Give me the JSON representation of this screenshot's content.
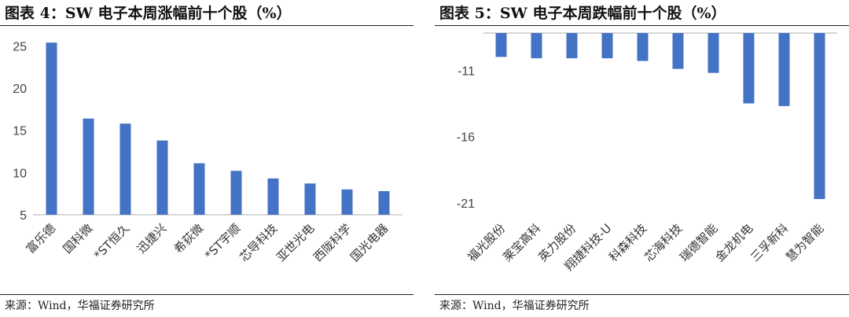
{
  "charts": {
    "left": {
      "title": "图表 4：SW 电子本周涨幅前十个股（%）",
      "source": "来源：Wind，华福证券研究所"
    },
    "right": {
      "title": "图表 5：SW 电子本周跌幅前十个股（%）",
      "source": "来源：Wind，华福证券研究所"
    }
  },
  "colors": {
    "bar": "#4472C4",
    "axis": "#BFBFBF",
    "text": "#333333"
  },
  "chart_data": [
    {
      "type": "bar",
      "title": "图表 4：SW 电子本周涨幅前十个股（%）",
      "categories": [
        "富乐德",
        "国科微",
        "*ST恒久",
        "迅捷兴",
        "希荻微",
        "*ST宇顺",
        "芯导科技",
        "亚世光电",
        "西陇科学",
        "国光电器"
      ],
      "values": [
        25.4,
        16.4,
        15.8,
        13.8,
        11.1,
        10.2,
        9.3,
        8.7,
        8.0,
        7.8
      ],
      "yticks": [
        5,
        10,
        15,
        20,
        25
      ],
      "ylim": [
        5,
        27
      ],
      "grid": false
    },
    {
      "type": "bar",
      "title": "图表 5：SW 电子本周跌幅前十个股（%）",
      "categories": [
        "福光股份",
        "莱宝高科",
        "英力股份",
        "翔捷科技-U",
        "科森科技",
        "芯海科技",
        "瑞德智能",
        "金龙机电",
        "三孚新科",
        "慧为智能"
      ],
      "values": [
        -10.0,
        -10.1,
        -10.1,
        -10.1,
        -10.3,
        -10.9,
        -11.2,
        -13.5,
        -13.7,
        -20.7
      ],
      "yticks": [
        -11,
        -16,
        -21
      ],
      "ylim": [
        -22,
        -8.2
      ],
      "baseline": -8.2,
      "grid": false
    }
  ]
}
